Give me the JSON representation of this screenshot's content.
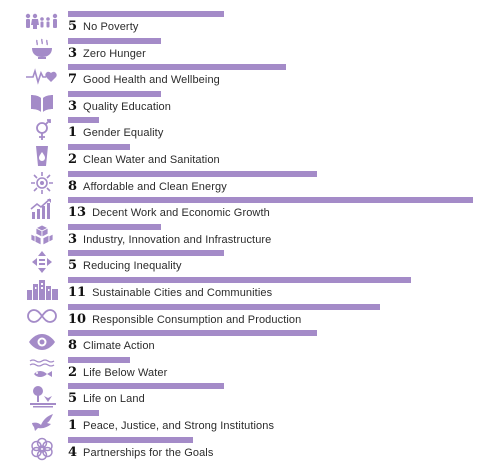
{
  "chart_data": {
    "type": "bar",
    "orientation": "horizontal",
    "bar_color": "#a48bc8",
    "icon_color": "#a48bc8",
    "grid": false,
    "legend": "none",
    "xlim": [
      0,
      13
    ],
    "categories": [
      "No Poverty",
      "Zero Hunger",
      "Good Health and Wellbeing",
      "Quality Education",
      "Gender Equality",
      "Clean Water and Sanitation",
      "Affordable and Clean Energy",
      "Decent Work and Economic Growth",
      "Industry, Innovation and Infrastructure",
      "Reducing Inequality",
      "Sustainable Cities and Communities",
      "Responsible Consumption and Production",
      "Climate Action",
      "Life Below Water",
      "Life on Land",
      "Peace, Justice, and Strong Institutions",
      "Partnerships for the Goals"
    ],
    "values": [
      5,
      3,
      7,
      3,
      1,
      2,
      8,
      13,
      3,
      5,
      11,
      10,
      8,
      2,
      5,
      1,
      4
    ],
    "value_labels": [
      "5",
      "3",
      "7",
      "3",
      "1",
      "2",
      "8",
      "13",
      "3",
      "5",
      "11",
      "10",
      "8",
      "2",
      "5",
      "1",
      "4"
    ],
    "icons": [
      "family-icon",
      "food-bowl-icon",
      "heartbeat-icon",
      "open-book-icon",
      "gender-icon",
      "water-drop-icon",
      "sun-icon",
      "growth-chart-icon",
      "cubes-icon",
      "equality-arrows-icon",
      "city-buildings-icon",
      "infinity-icon",
      "eye-icon",
      "fish-icon",
      "tree-icon",
      "dove-icon",
      "flower-rings-icon"
    ]
  }
}
